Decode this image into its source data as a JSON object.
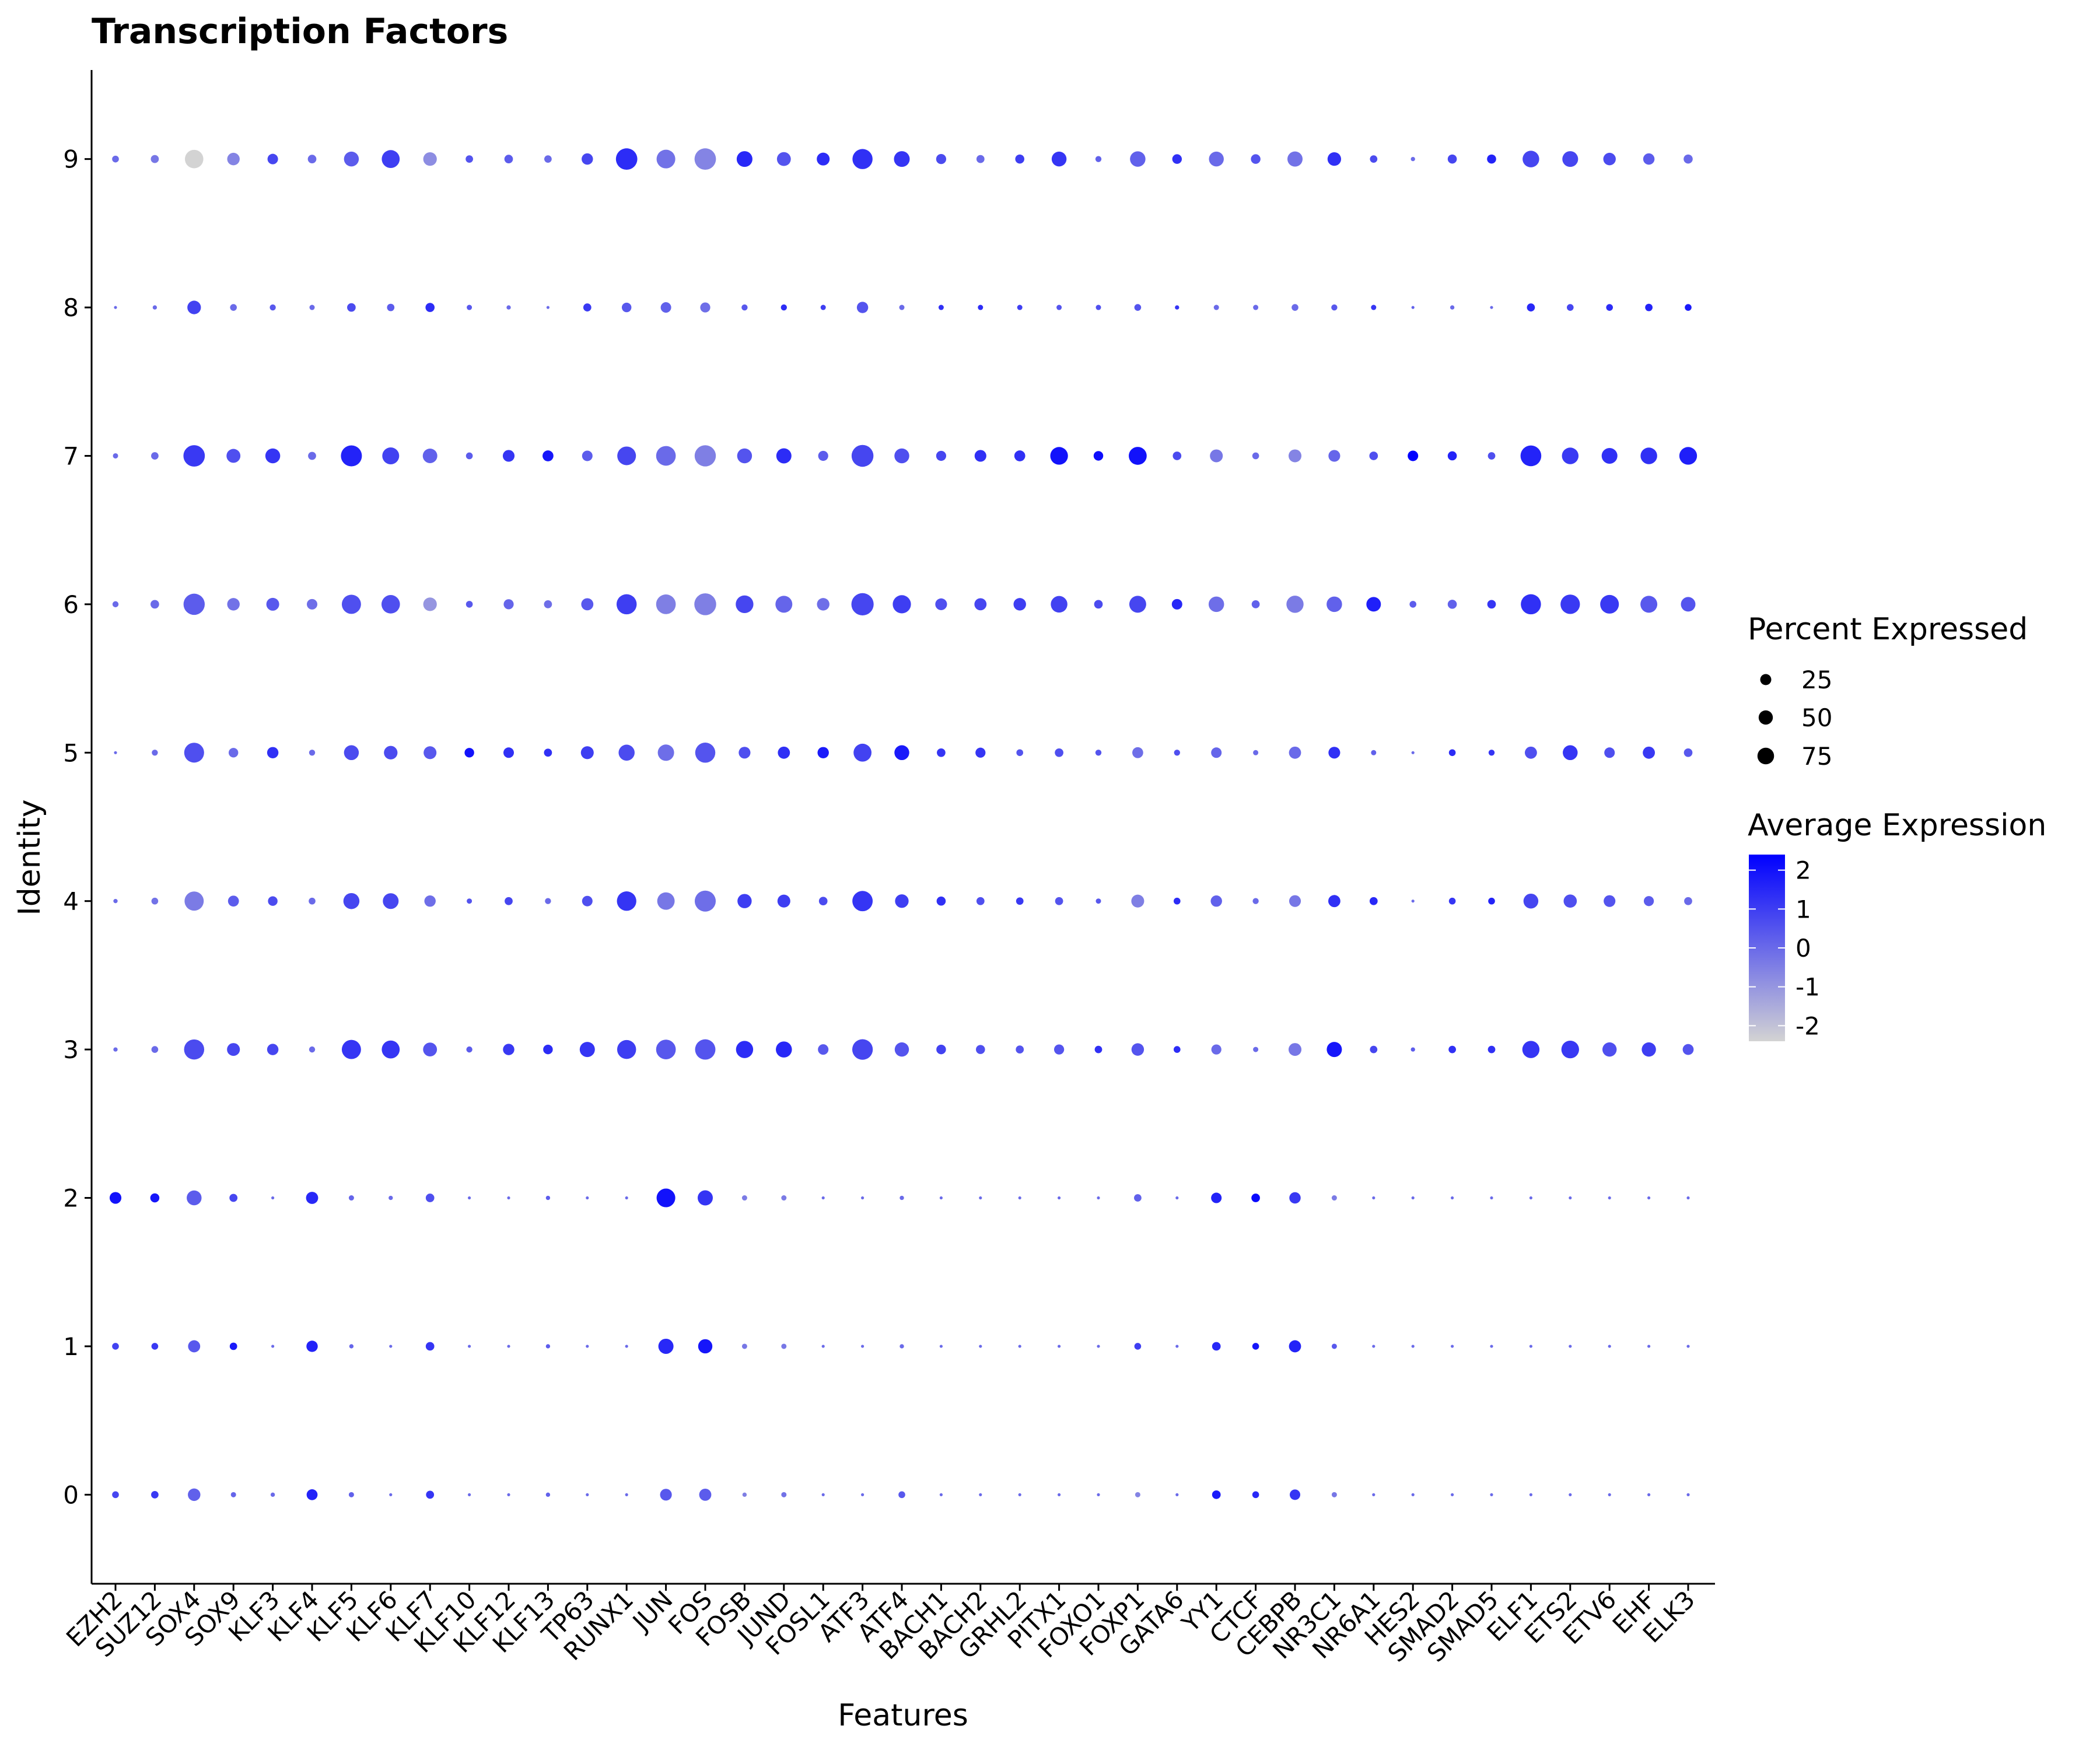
{
  "chart_data": {
    "type": "dotplot",
    "title": "Transcription Factors",
    "xlabel": "Features",
    "ylabel": "Identity",
    "features": [
      "EZH2",
      "SUZ12",
      "SOX4",
      "SOX9",
      "KLF3",
      "KLF4",
      "KLF5",
      "KLF6",
      "KLF7",
      "KLF10",
      "KLF12",
      "KLF13",
      "TP63",
      "RUNX1",
      "JUN",
      "FOS",
      "FOSB",
      "JUND",
      "FOSL1",
      "ATF3",
      "ATF4",
      "BACH1",
      "BACH2",
      "GRHL2",
      "PITX1",
      "FOXO1",
      "FOXP1",
      "GATA6",
      "YY1",
      "CTCF",
      "CEBPB",
      "NR3C1",
      "NR6A1",
      "HES2",
      "SMAD2",
      "SMAD5",
      "ELF1",
      "ETS2",
      "ETV6",
      "EHF",
      "ELK3"
    ],
    "identities": [
      "0",
      "1",
      "2",
      "3",
      "4",
      "5",
      "6",
      "7",
      "8",
      "9"
    ],
    "ylim": [
      -0.6,
      9.6
    ],
    "size_legend": {
      "title": "Percent Expressed",
      "values": [
        25,
        50,
        75
      ]
    },
    "color_legend": {
      "title": "Average Expression",
      "ticks": [
        2,
        1,
        0,
        -1,
        -2
      ],
      "range": [
        -2.4,
        2.4
      ],
      "low_color": "#d3d3d3",
      "high_color": "#0000ff"
    },
    "rows": [
      {
        "identity": "0",
        "pct": [
          5,
          6,
          17,
          3,
          2,
          13,
          3,
          1,
          7,
          1,
          1,
          2,
          1,
          1,
          15,
          16,
          2,
          3,
          1,
          1,
          5,
          1,
          1,
          1,
          1,
          1,
          3,
          1,
          8,
          5,
          12,
          3,
          1,
          1,
          1,
          1,
          1,
          1,
          1,
          1,
          1
        ],
        "avg": [
          0.8,
          1.1,
          0.2,
          0.1,
          0,
          1.6,
          0.2,
          0,
          1.2,
          0,
          0,
          0.2,
          0,
          0,
          0.4,
          0.3,
          -0.5,
          -0.2,
          0,
          0,
          0.4,
          0,
          0,
          0,
          0,
          0,
          -0.6,
          0,
          1.8,
          1.5,
          1.2,
          -0.3,
          0,
          0,
          0,
          0,
          0,
          0,
          0,
          0,
          0
        ]
      },
      {
        "identity": "1",
        "pct": [
          5,
          5,
          16,
          6,
          1,
          14,
          2,
          1,
          8,
          1,
          1,
          2,
          1,
          1,
          25,
          22,
          3,
          3,
          1,
          1,
          2,
          1,
          1,
          1,
          1,
          1,
          5,
          1,
          8,
          5,
          16,
          3,
          1,
          1,
          1,
          1,
          1,
          1,
          1,
          1,
          1
        ],
        "avg": [
          0.9,
          1.1,
          0.4,
          1.8,
          0,
          1.6,
          0.1,
          0,
          1.2,
          0,
          0,
          0.3,
          0,
          0,
          1.5,
          1.9,
          -0.3,
          -0.3,
          0,
          0,
          0,
          0,
          0,
          0,
          0,
          0,
          1.0,
          0,
          1.5,
          1.9,
          1.6,
          0.4,
          0,
          0,
          0,
          0,
          0,
          0,
          0,
          0,
          0
        ]
      },
      {
        "identity": "2",
        "pct": [
          15,
          9,
          24,
          7,
          1,
          16,
          3,
          2,
          8,
          1,
          1,
          2,
          1,
          1,
          38,
          25,
          3,
          3,
          1,
          1,
          2,
          1,
          1,
          1,
          1,
          1,
          6,
          1,
          12,
          8,
          14,
          3,
          1,
          1,
          1,
          1,
          1,
          1,
          1,
          1,
          1
        ],
        "avg": [
          2.0,
          1.9,
          0.3,
          0.8,
          0,
          1.5,
          0.1,
          0,
          0.6,
          0,
          0,
          0.3,
          0,
          0,
          2.0,
          1.2,
          -0.4,
          -0.4,
          0,
          0,
          0,
          0,
          0,
          0,
          0,
          0,
          0.2,
          0,
          1.6,
          2.2,
          1.1,
          -0.4,
          0,
          0,
          0,
          0,
          0,
          0,
          0,
          0,
          0
        ]
      },
      {
        "identity": "3",
        "pct": [
          2,
          5,
          44,
          18,
          14,
          4,
          40,
          35,
          21,
          4,
          14,
          10,
          25,
          39,
          42,
          45,
          32,
          28,
          12,
          46,
          22,
          10,
          9,
          7,
          11,
          6,
          17,
          5,
          11,
          3,
          18,
          25,
          6,
          2,
          6,
          6,
          32,
          34,
          22,
          22,
          13
        ],
        "avg": [
          0,
          0,
          0.7,
          0.8,
          0.8,
          0,
          1.2,
          1.2,
          0.5,
          0.3,
          1.1,
          1.4,
          1.2,
          1.0,
          0.4,
          0.5,
          1.4,
          1.5,
          0.4,
          0.8,
          0.5,
          0.9,
          0.6,
          0.5,
          0.5,
          1.3,
          0.5,
          1.4,
          0,
          0,
          -0.3,
          1.9,
          0.8,
          0.3,
          1.3,
          1.3,
          1.2,
          1.1,
          0.6,
          1.0,
          0.5
        ]
      },
      {
        "identity": "4",
        "pct": [
          2,
          5,
          40,
          13,
          10,
          5,
          28,
          27,
          14,
          3,
          7,
          4,
          12,
          41,
          33,
          48,
          22,
          18,
          8,
          45,
          20,
          9,
          7,
          6,
          7,
          3,
          18,
          5,
          14,
          4,
          15,
          16,
          7,
          1,
          5,
          5,
          24,
          19,
          15,
          11,
          7
        ],
        "avg": [
          0,
          -0.2,
          -0.4,
          0.3,
          0.7,
          0,
          0.8,
          0.8,
          -0.1,
          0.5,
          0.8,
          0,
          0.6,
          1.2,
          -0.3,
          -0.1,
          1.0,
          1.0,
          0.7,
          1.2,
          1.0,
          1.3,
          0.6,
          1.1,
          0.5,
          0.4,
          -0.5,
          1.4,
          0.2,
          0,
          -0.3,
          1.3,
          1.5,
          0,
          1.2,
          1.6,
          0.8,
          0.6,
          0.5,
          0.3,
          0
        ]
      },
      {
        "identity": "5",
        "pct": [
          1,
          4,
          43,
          10,
          14,
          4,
          24,
          20,
          18,
          10,
          12,
          7,
          18,
          28,
          29,
          44,
          15,
          16,
          14,
          35,
          24,
          8,
          11,
          5,
          8,
          4,
          13,
          4,
          12,
          3,
          16,
          15,
          3,
          1,
          5,
          4,
          16,
          24,
          12,
          16,
          8
        ],
        "avg": [
          0,
          0,
          0.6,
          0,
          1.3,
          0,
          0.7,
          0.7,
          0.4,
          2.0,
          1.3,
          1.3,
          1.0,
          0.7,
          -0.1,
          0.5,
          0.6,
          1.3,
          1.8,
          0.9,
          1.8,
          1.2,
          1.2,
          0.5,
          0.6,
          0.5,
          -0.1,
          0.6,
          0.1,
          0,
          0,
          1.3,
          0.2,
          0,
          1.4,
          1.2,
          0.6,
          1.2,
          0.6,
          1.1,
          0.4
        ]
      },
      {
        "identity": "6",
        "pct": [
          4,
          8,
          49,
          17,
          18,
          12,
          40,
          37,
          20,
          5,
          11,
          7,
          16,
          44,
          42,
          52,
          34,
          31,
          17,
          54,
          36,
          15,
          16,
          17,
          30,
          8,
          31,
          12,
          26,
          7,
          32,
          26,
          23,
          5,
          9,
          8,
          44,
          41,
          38,
          31,
          23
        ],
        "avg": [
          0,
          0,
          0.3,
          -0.2,
          0.4,
          -0.1,
          0.6,
          0.6,
          -1.0,
          0.4,
          0.1,
          -0.1,
          0.4,
          1.0,
          -0.5,
          -0.5,
          0.8,
          0.1,
          -0.1,
          0.8,
          1.0,
          0.6,
          0.8,
          1.0,
          0.9,
          0.7,
          0.8,
          1.5,
          -0.1,
          0.2,
          -0.4,
          0.2,
          1.7,
          0.3,
          0.2,
          1.2,
          1.3,
          1.1,
          1.1,
          0.4,
          0.5
        ]
      },
      {
        "identity": "7",
        "pct": [
          3,
          6,
          50,
          21,
          24,
          7,
          48,
          31,
          23,
          5,
          15,
          13,
          12,
          38,
          42,
          49,
          24,
          25,
          11,
          52,
          24,
          11,
          15,
          13,
          34,
          10,
          35,
          8,
          18,
          5,
          18,
          15,
          8,
          12,
          9,
          6,
          47,
          30,
          27,
          30,
          34
        ],
        "avg": [
          0,
          0,
          1.1,
          0.6,
          1.2,
          0,
          1.6,
          0.9,
          0.2,
          0.3,
          1.2,
          1.9,
          0.3,
          0.8,
          0,
          -0.5,
          0.5,
          1.4,
          0.3,
          0.8,
          0.6,
          0.8,
          1.3,
          1.3,
          2.0,
          2.1,
          2.0,
          0.7,
          -0.3,
          0,
          -0.6,
          0.1,
          0.6,
          2.5,
          1.6,
          0.6,
          1.6,
          1.1,
          1.3,
          1.3,
          1.7
        ]
      },
      {
        "identity": "8",
        "pct": [
          1,
          2,
          20,
          5,
          4,
          3,
          8,
          6,
          9,
          3,
          2,
          1,
          7,
          10,
          12,
          11,
          4,
          4,
          3,
          14,
          3,
          3,
          3,
          3,
          3,
          3,
          5,
          2,
          3,
          3,
          5,
          4,
          3,
          1,
          2,
          1,
          7,
          5,
          5,
          6,
          5
        ],
        "avg": [
          0,
          0,
          0.9,
          0,
          0.4,
          0,
          0.7,
          0.3,
          1.4,
          0.4,
          0,
          0,
          1.1,
          0.4,
          0.2,
          -0.1,
          0.4,
          1.4,
          1.0,
          0.5,
          0,
          1.3,
          1.4,
          1.0,
          0.5,
          0.6,
          0.5,
          1.2,
          0,
          0,
          0,
          0.4,
          1.2,
          0.2,
          0,
          0,
          1.5,
          0.8,
          1.4,
          1.6,
          1.8
        ]
      },
      {
        "identity": "9",
        "pct": [
          5,
          7,
          37,
          17,
          12,
          8,
          24,
          35,
          20,
          6,
          8,
          6,
          14,
          50,
          38,
          50,
          27,
          21,
          18,
          44,
          27,
          11,
          7,
          9,
          24,
          4,
          26,
          10,
          24,
          10,
          25,
          20,
          6,
          2,
          9,
          9,
          30,
          27,
          17,
          14,
          9
        ],
        "avg": [
          0,
          -0.3,
          -2.4,
          -0.6,
          0.8,
          0,
          0.3,
          1.0,
          -0.8,
          0.5,
          0.3,
          0,
          0.8,
          1.4,
          -0.2,
          -0.6,
          1.5,
          0.5,
          1.4,
          1.3,
          1.2,
          0.7,
          0,
          1.0,
          1.2,
          0.2,
          0.2,
          1.3,
          0,
          0.5,
          -0.2,
          1.3,
          0.7,
          0,
          0.8,
          1.6,
          0.8,
          0.8,
          0.7,
          0.3,
          0
        ]
      }
    ]
  }
}
